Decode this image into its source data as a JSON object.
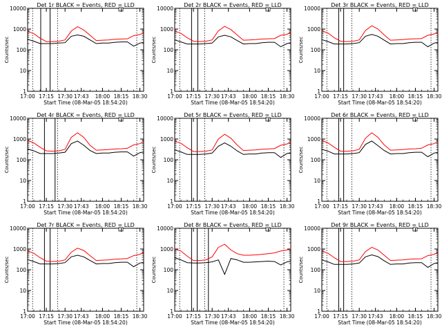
{
  "figure": {
    "series_colors": {
      "events": "#000000",
      "lld": "#ff0000"
    },
    "shared_xticks": [
      "17:00",
      "17:15",
      "17:30",
      "17:43",
      "18:00",
      "18:15",
      "18:30"
    ],
    "x_start_time": "17:00",
    "x_end_time": "18:33",
    "ylim": [
      1,
      10000
    ],
    "yscale": "log",
    "yticks": [
      1,
      10,
      100,
      1000,
      10000
    ],
    "ylabel": "Counts/sec",
    "xlabel": "Start Time (08-Mar-05 18:54:20)"
  },
  "chart_data": [
    {
      "type": "line",
      "title": "Det 1r BLACK = Events, RED = LLD",
      "xlabel": "Start Time (08-Mar-05 18:54:20)",
      "ylabel": "Counts/sec",
      "ylim": [
        1,
        10000
      ],
      "yscale": "log",
      "xticks": [
        "17:00",
        "17:15",
        "17:30",
        "17:43",
        "18:00",
        "18:15",
        "18:30"
      ],
      "x_minutes": [
        0,
        5,
        10,
        15,
        20,
        25,
        30,
        35,
        40,
        45,
        50,
        55,
        60,
        65,
        70,
        75,
        80,
        85,
        90,
        93
      ],
      "series": [
        {
          "name": "BLACK = Events",
          "color": "#000000",
          "values": [
            320,
            260,
            200,
            200,
            200,
            210,
            220,
            450,
            520,
            450,
            300,
            200,
            210,
            210,
            230,
            240,
            240,
            150,
            210,
            230
          ]
        },
        {
          "name": "RED = LLD",
          "color": "#ff0000",
          "values": [
            780,
            600,
            360,
            250,
            250,
            260,
            300,
            800,
            1300,
            900,
            500,
            280,
            290,
            300,
            320,
            330,
            340,
            480,
            550,
            650
          ]
        }
      ],
      "vertical_solid_minutes": [
        10.5,
        18
      ],
      "vertical_dotted_minutes": [
        4,
        24,
        87.5
      ]
    },
    {
      "type": "line",
      "title": "Det 2r BLACK = Events, RED = LLD",
      "xlabel": "Start Time (08-Mar-05 18:54:20)",
      "ylabel": "Counts/sec",
      "ylim": [
        1,
        10000
      ],
      "yscale": "log",
      "xticks": [
        "17:00",
        "17:15",
        "17:30",
        "17:43",
        "18:00",
        "18:15",
        "18:30"
      ],
      "x_minutes": [
        0,
        5,
        10,
        15,
        20,
        25,
        30,
        35,
        40,
        45,
        50,
        55,
        60,
        65,
        70,
        75,
        80,
        85,
        90,
        93
      ],
      "series": [
        {
          "name": "BLACK = Events",
          "color": "#000000",
          "values": [
            300,
            240,
            190,
            190,
            190,
            200,
            210,
            420,
            500,
            420,
            280,
            190,
            200,
            200,
            220,
            230,
            230,
            140,
            200,
            220
          ]
        },
        {
          "name": "RED = LLD",
          "color": "#ff0000",
          "values": [
            800,
            620,
            380,
            260,
            250,
            260,
            300,
            820,
            1350,
            950,
            520,
            290,
            300,
            310,
            330,
            340,
            350,
            500,
            560,
            700
          ]
        }
      ],
      "vertical_solid_minutes": [
        13.5,
        18.5
      ],
      "vertical_dotted_minutes": [
        4,
        24,
        87.5
      ]
    },
    {
      "type": "line",
      "title": "Det 3r BLACK = Events, RED = LLD",
      "xlabel": "Start Time (08-Mar-05 18:54:20)",
      "ylabel": "Counts/sec",
      "ylim": [
        1,
        10000
      ],
      "yscale": "log",
      "xticks": [
        "17:00",
        "17:15",
        "17:30",
        "17:43",
        "18:00",
        "18:15",
        "18:30"
      ],
      "x_minutes": [
        0,
        5,
        10,
        15,
        20,
        25,
        30,
        35,
        40,
        45,
        50,
        55,
        60,
        65,
        70,
        75,
        80,
        85,
        90,
        93
      ],
      "series": [
        {
          "name": "BLACK = Events",
          "color": "#000000",
          "values": [
            310,
            250,
            190,
            190,
            190,
            200,
            220,
            450,
            550,
            450,
            290,
            190,
            200,
            200,
            220,
            230,
            230,
            140,
            210,
            230
          ]
        },
        {
          "name": "RED = LLD",
          "color": "#ff0000",
          "values": [
            820,
            640,
            380,
            260,
            250,
            260,
            300,
            850,
            1450,
            1000,
            520,
            290,
            300,
            310,
            330,
            340,
            350,
            500,
            580,
            720
          ]
        }
      ],
      "vertical_solid_minutes": [
        13.5,
        17.5
      ],
      "vertical_dotted_minutes": [
        4,
        24,
        87.5
      ]
    },
    {
      "type": "line",
      "title": "Det 4r BLACK = Events, RED = LLD",
      "xlabel": "Start Time (08-Mar-05 18:54:20)",
      "ylabel": "Counts/sec",
      "ylim": [
        1,
        10000
      ],
      "yscale": "log",
      "xticks": [
        "17:00",
        "17:15",
        "17:30",
        "17:43",
        "18:00",
        "18:15",
        "18:30"
      ],
      "x_minutes": [
        0,
        5,
        10,
        15,
        20,
        25,
        30,
        35,
        40,
        45,
        50,
        55,
        60,
        65,
        70,
        75,
        80,
        85,
        90,
        93
      ],
      "series": [
        {
          "name": "BLACK = Events",
          "color": "#000000",
          "values": [
            330,
            270,
            200,
            200,
            200,
            210,
            230,
            600,
            800,
            500,
            280,
            200,
            210,
            210,
            230,
            240,
            240,
            150,
            220,
            240
          ]
        },
        {
          "name": "RED = LLD",
          "color": "#ff0000",
          "values": [
            850,
            650,
            400,
            270,
            260,
            270,
            320,
            1200,
            2000,
            1200,
            500,
            290,
            300,
            310,
            330,
            340,
            360,
            520,
            600,
            750
          ]
        }
      ],
      "vertical_solid_minutes": [
        13.5,
        22
      ],
      "vertical_dotted_minutes": [
        4,
        24,
        87.5
      ]
    },
    {
      "type": "line",
      "title": "Det 5r BLACK = Events, RED = LLD",
      "xlabel": "Start Time (08-Mar-05 18:54:20)",
      "ylabel": "Counts/sec",
      "ylim": [
        1,
        10000
      ],
      "yscale": "log",
      "xticks": [
        "17:00",
        "17:15",
        "17:30",
        "17:43",
        "18:00",
        "18:15",
        "18:30"
      ],
      "x_minutes": [
        0,
        5,
        10,
        15,
        20,
        25,
        30,
        35,
        40,
        45,
        50,
        55,
        60,
        65,
        70,
        75,
        80,
        85,
        90,
        93
      ],
      "series": [
        {
          "name": "BLACK = Events",
          "color": "#000000",
          "values": [
            300,
            240,
            180,
            180,
            180,
            190,
            210,
            450,
            650,
            450,
            270,
            180,
            190,
            190,
            210,
            220,
            220,
            130,
            200,
            220
          ]
        },
        {
          "name": "RED = LLD",
          "color": "#ff0000",
          "values": [
            800,
            620,
            380,
            250,
            250,
            260,
            300,
            1000,
            1700,
            1100,
            520,
            280,
            290,
            300,
            320,
            330,
            350,
            500,
            580,
            700
          ]
        }
      ],
      "vertical_solid_minutes": [
        13.5,
        18
      ],
      "vertical_dotted_minutes": [
        4,
        24,
        87.5
      ]
    },
    {
      "type": "line",
      "title": "Det 6r BLACK = Events, RED = LLD",
      "xlabel": "Start Time (08-Mar-05 18:54:20)",
      "ylabel": "Counts/sec",
      "ylim": [
        1,
        10000
      ],
      "yscale": "log",
      "xticks": [
        "17:00",
        "17:15",
        "17:30",
        "17:43",
        "18:00",
        "18:15",
        "18:30"
      ],
      "x_minutes": [
        0,
        5,
        10,
        15,
        20,
        25,
        30,
        35,
        40,
        45,
        50,
        55,
        60,
        65,
        70,
        75,
        80,
        85,
        90,
        93
      ],
      "series": [
        {
          "name": "BLACK = Events",
          "color": "#000000",
          "values": [
            320,
            260,
            190,
            190,
            190,
            200,
            220,
            550,
            800,
            480,
            280,
            190,
            200,
            200,
            220,
            230,
            230,
            140,
            210,
            230
          ]
        },
        {
          "name": "RED = LLD",
          "color": "#ff0000",
          "values": [
            850,
            650,
            400,
            260,
            260,
            270,
            320,
            1100,
            2000,
            1200,
            520,
            290,
            300,
            310,
            330,
            340,
            360,
            520,
            600,
            750
          ]
        }
      ],
      "vertical_solid_minutes": [
        13.5,
        17.5
      ],
      "vertical_dotted_minutes": [
        4,
        24,
        87.5
      ]
    },
    {
      "type": "line",
      "title": "Det 7r BLACK = Events, RED = LLD",
      "xlabel": "Start Time (08-Mar-05 18:54:20)",
      "ylabel": "Counts/sec",
      "ylim": [
        1,
        10000
      ],
      "yscale": "log",
      "xticks": [
        "17:00",
        "17:15",
        "17:30",
        "17:43",
        "18:00",
        "18:15",
        "18:30"
      ],
      "x_minutes": [
        0,
        5,
        10,
        15,
        20,
        25,
        30,
        35,
        40,
        45,
        50,
        55,
        60,
        65,
        70,
        75,
        80,
        85,
        90,
        93
      ],
      "series": [
        {
          "name": "BLACK = Events",
          "color": "#000000",
          "values": [
            310,
            250,
            190,
            190,
            190,
            200,
            220,
            420,
            500,
            420,
            280,
            190,
            200,
            200,
            220,
            230,
            230,
            140,
            210,
            230
          ]
        },
        {
          "name": "RED = LLD",
          "color": "#ff0000",
          "values": [
            800,
            620,
            380,
            260,
            250,
            260,
            300,
            700,
            1100,
            850,
            480,
            280,
            290,
            300,
            320,
            330,
            350,
            480,
            560,
            680
          ]
        }
      ],
      "vertical_solid_minutes": [
        13.5,
        18
      ],
      "vertical_dotted_minutes": [
        4,
        24,
        87.5
      ]
    },
    {
      "type": "line",
      "title": "Det 8r BLACK = Events, RED = LLD",
      "xlabel": "Start Time (08-Mar-05 18:54:20)",
      "ylabel": "Counts/sec",
      "ylim": [
        1,
        10000
      ],
      "yscale": "log",
      "xticks": [
        "17:00",
        "17:15",
        "17:30",
        "17:43",
        "18:00",
        "18:15",
        "18:30"
      ],
      "x_minutes": [
        0,
        5,
        10,
        15,
        20,
        25,
        30,
        35,
        40,
        45,
        50,
        55,
        60,
        65,
        70,
        75,
        80,
        85,
        90,
        93
      ],
      "series": [
        {
          "name": "BLACK = Events",
          "color": "#000000",
          "values": [
            380,
            300,
            220,
            210,
            210,
            220,
            240,
            300,
            60,
            350,
            300,
            230,
            230,
            240,
            250,
            260,
            250,
            170,
            240,
            260
          ]
        },
        {
          "name": "RED = LLD",
          "color": "#ff0000",
          "values": [
            1000,
            800,
            450,
            280,
            280,
            300,
            420,
            1200,
            1700,
            900,
            600,
            500,
            500,
            520,
            560,
            600,
            650,
            800,
            900,
            1000
          ]
        }
      ],
      "vertical_solid_minutes": [
        13.5,
        18,
        27
      ],
      "vertical_dotted_minutes": [
        4,
        24,
        87.5
      ]
    },
    {
      "type": "line",
      "title": "Det 9r BLACK = Events, RED = LLD",
      "xlabel": "Start Time (08-Mar-05 18:54:20)",
      "ylabel": "Counts/sec",
      "ylim": [
        1,
        10000
      ],
      "yscale": "log",
      "xticks": [
        "17:00",
        "17:15",
        "17:30",
        "17:43",
        "18:00",
        "18:15",
        "18:30"
      ],
      "x_minutes": [
        0,
        5,
        10,
        15,
        20,
        25,
        30,
        35,
        40,
        45,
        50,
        55,
        60,
        65,
        70,
        75,
        80,
        85,
        90,
        93
      ],
      "series": [
        {
          "name": "BLACK = Events",
          "color": "#000000",
          "values": [
            300,
            240,
            180,
            180,
            180,
            190,
            210,
            420,
            520,
            430,
            270,
            180,
            190,
            190,
            210,
            220,
            220,
            130,
            200,
            220
          ]
        },
        {
          "name": "RED = LLD",
          "color": "#ff0000",
          "values": [
            800,
            620,
            380,
            250,
            250,
            260,
            300,
            750,
            1200,
            900,
            500,
            280,
            290,
            300,
            320,
            330,
            340,
            480,
            560,
            680
          ]
        }
      ],
      "vertical_solid_minutes": [
        13.5,
        17.5
      ],
      "vertical_dotted_minutes": [
        4,
        24,
        87.5
      ]
    }
  ]
}
